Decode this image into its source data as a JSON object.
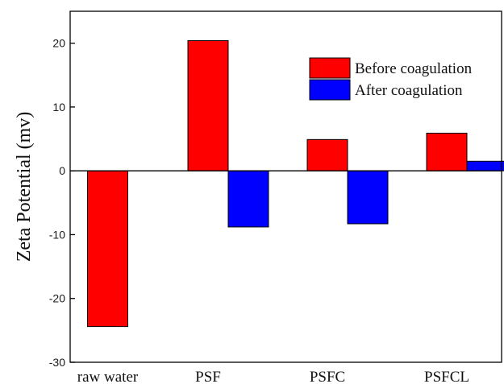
{
  "chart_data": {
    "type": "bar",
    "title": "",
    "xlabel": "",
    "ylabel": "Zeta Potential (mv)",
    "categories": [
      "raw water",
      "PSF",
      "PSFC",
      "PSFCL"
    ],
    "series": [
      {
        "name": "Before coagulation",
        "color": "#ff0000",
        "values": [
          -24.4,
          20.4,
          4.9,
          5.9
        ]
      },
      {
        "name": "After coagulation",
        "color": "#0000ff",
        "values": [
          null,
          -8.8,
          -8.3,
          1.5
        ]
      }
    ],
    "ylim": [
      -30,
      25
    ],
    "yticks": [
      -30,
      -20,
      -10,
      0,
      10,
      20
    ],
    "grid": false,
    "legend_position": "top-right"
  }
}
